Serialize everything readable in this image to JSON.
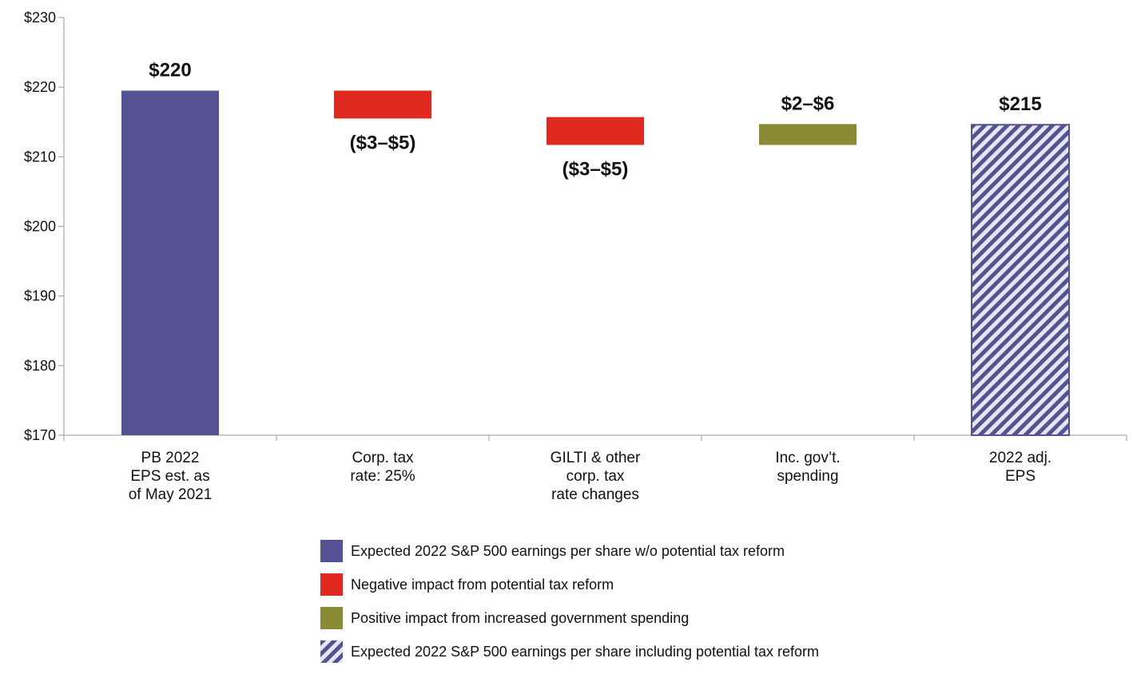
{
  "chart_data": {
    "type": "bar",
    "subtype": "waterfall",
    "title": "",
    "xlabel": "",
    "ylabel": "",
    "ylim": [
      170,
      230
    ],
    "yticks": [
      170,
      180,
      190,
      200,
      210,
      220,
      230
    ],
    "ytick_labels": [
      "$170",
      "$180",
      "$190",
      "$200",
      "$210",
      "$220",
      "$230"
    ],
    "grid": false,
    "categories": [
      [
        "PB 2022",
        "EPS est. as",
        "of May 2021"
      ],
      [
        "Corp. tax",
        "rate: 25%"
      ],
      [
        "GILTI & other",
        "corp. tax",
        "rate changes"
      ],
      [
        "Inc. gov’t.",
        "spending"
      ],
      [
        "2022 adj.",
        "EPS"
      ]
    ],
    "bars": [
      {
        "start": 170,
        "end": 219.5,
        "kind": "base",
        "label": "$220",
        "label_position": "above"
      },
      {
        "start": 219.5,
        "end": 215.5,
        "kind": "negative",
        "label": "($3–$5)",
        "label_position": "below"
      },
      {
        "start": 215.7,
        "end": 211.7,
        "kind": "negative",
        "label": "($3–$5)",
        "label_position": "below"
      },
      {
        "start": 211.7,
        "end": 214.7,
        "kind": "positive",
        "label": "$2–$6",
        "label_position": "above"
      },
      {
        "start": 170,
        "end": 214.6,
        "kind": "adjusted",
        "label": "$215",
        "label_position": "above"
      }
    ],
    "legend_position": "bottom",
    "legend": [
      {
        "kind": "base",
        "label": "Expected 2022 S&P 500 earnings per share w/o potential tax reform"
      },
      {
        "kind": "negative",
        "label": "Negative impact from potential tax reform"
      },
      {
        "kind": "positive",
        "label": "Positive impact from increased government spending"
      },
      {
        "kind": "adjusted",
        "label": "Expected 2022 S&P 500 earnings per share including potential tax reform"
      }
    ],
    "colors": {
      "base": "#535292",
      "negative": "#e0291f",
      "positive": "#8a8b35",
      "adjusted_stripe": "#535292",
      "adjusted_bg": "#e6e6f0",
      "axis": "#999999",
      "text": "#111111"
    }
  }
}
